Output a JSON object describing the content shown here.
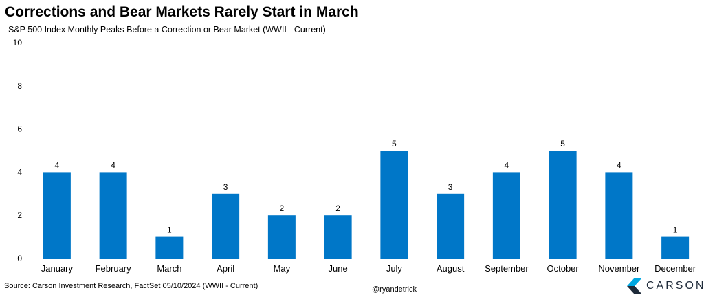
{
  "title": "Corrections and Bear Markets Rarely Start in March",
  "subtitle": "S&P 500 Index Monthly Peaks Before a Correction or Bear Market (WWII - Current)",
  "source": "Source: Carson Investment Research, FactSet 05/10/2024 (WWII - Current)",
  "handle": "@ryandetrick",
  "logo": {
    "text": "CARSON",
    "icon": "carson-chevron-logo-icon"
  },
  "colors": {
    "bar": "#0077c8",
    "logo_dark": "#1f2b3a",
    "logo_accent": "#00a7e1"
  },
  "chart_data": {
    "type": "bar",
    "categories": [
      "January",
      "February",
      "March",
      "April",
      "May",
      "June",
      "July",
      "August",
      "September",
      "October",
      "November",
      "December"
    ],
    "values": [
      4,
      4,
      1,
      3,
      2,
      2,
      5,
      3,
      4,
      5,
      4,
      1
    ],
    "title": "Corrections and Bear Markets Rarely Start in March",
    "subtitle": "S&P 500 Index Monthly Peaks Before a Correction or Bear Market (WWII - Current)",
    "xlabel": "",
    "ylabel": "",
    "ylim": [
      0,
      10
    ],
    "yticks": [
      0,
      2,
      4,
      6,
      8,
      10
    ],
    "data_labels": true,
    "grid": false,
    "legend": "none"
  }
}
